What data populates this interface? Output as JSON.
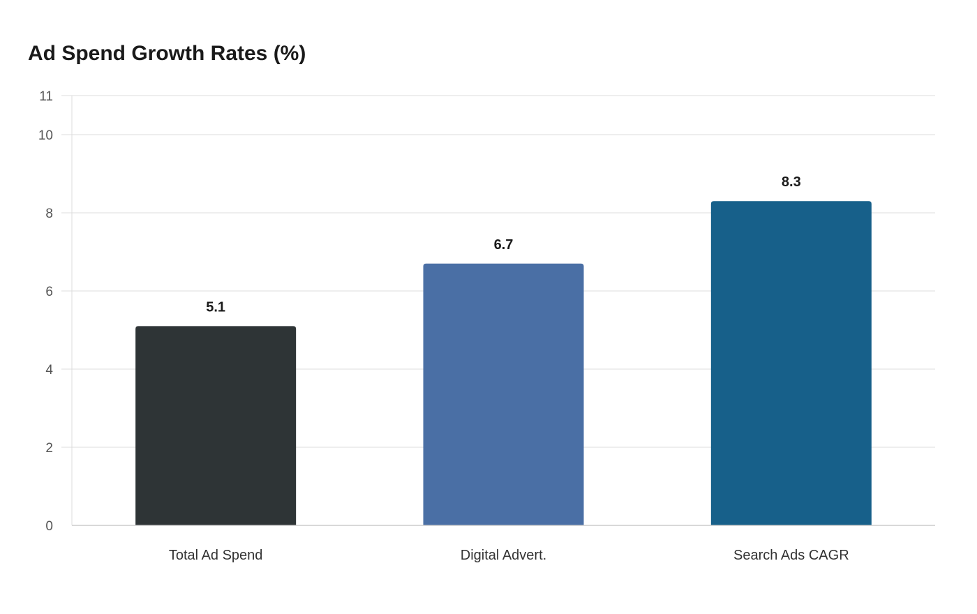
{
  "chart_data": {
    "type": "bar",
    "title": "Ad Spend Growth Rates (%)",
    "xlabel": "",
    "ylabel": "",
    "categories": [
      "Total Ad Spend",
      "Digital Advert.",
      "Search Ads CAGR"
    ],
    "values": [
      5.1,
      6.7,
      8.3
    ],
    "value_labels": [
      "5.1",
      "6.7",
      "8.3"
    ],
    "colors": [
      "#2e3436",
      "#4a6fa5",
      "#17608a"
    ],
    "ylim": [
      0,
      11
    ],
    "yticks": [
      0,
      2,
      4,
      6,
      8,
      10,
      11
    ],
    "grid": true,
    "legend": "none"
  }
}
